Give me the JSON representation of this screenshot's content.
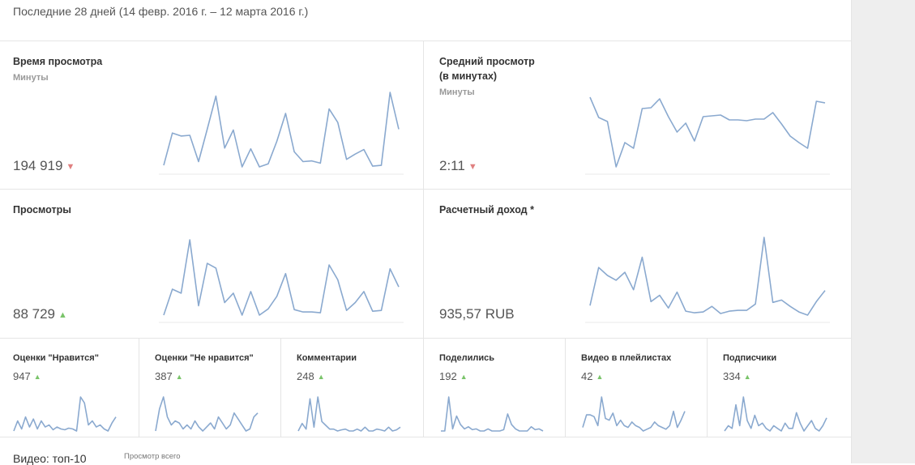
{
  "period": "Последние 28 дней (14 февр. 2016 г. – 12 марта 2016 г.)",
  "big_cards": [
    {
      "title": "Время просмотра",
      "subtitle": "Минуты",
      "value": "194 919",
      "trend": "▼"
    },
    {
      "title": "Средний просмотр\n(в минутах)",
      "subtitle": "Минуты",
      "value": "2:11",
      "trend": "▼"
    },
    {
      "title": "Просмотры",
      "subtitle": "",
      "value": "88 729",
      "trend": "▲"
    },
    {
      "title": "Расчетный доход *",
      "subtitle": "",
      "value": "935,57 RUB",
      "trend": ""
    }
  ],
  "small_cards": [
    {
      "title": "Оценки \"Нравится\"",
      "value": "947",
      "trend": "▲"
    },
    {
      "title": "Оценки \"Не нравится\"",
      "value": "387",
      "trend": "▲"
    },
    {
      "title": "Комментарии",
      "value": "248",
      "trend": "▲"
    },
    {
      "title": "Поделились",
      "value": "192",
      "trend": "▲"
    },
    {
      "title": "Видео в плейлистах",
      "value": "42",
      "trend": "▲"
    },
    {
      "title": "Подписчики",
      "value": "334",
      "trend": "▲"
    }
  ],
  "bottom": {
    "title": "Видео: топ-10",
    "subtitle": "Просмотр всего"
  },
  "colors": {
    "line": "#8aa9cf",
    "up": "#7ac46a",
    "down": "#e08080"
  },
  "chart_data": [
    {
      "type": "line",
      "series": [
        {
          "values": [
            2,
            45,
            41,
            42,
            7,
            50,
            94,
            25,
            49,
            0,
            24,
            0,
            4,
            34,
            71,
            20,
            7,
            8,
            5,
            77,
            59,
            10,
            17,
            23,
            1,
            2,
            99,
            50
          ]
        }
      ]
    },
    {
      "type": "line",
      "series": [
        {
          "values": [
            88,
            63,
            58,
            2,
            32,
            25,
            74,
            75,
            86,
            64,
            45,
            56,
            34,
            64,
            65,
            66,
            60,
            60,
            59,
            61,
            61,
            69,
            55,
            40,
            32,
            25,
            83,
            81
          ]
        }
      ]
    },
    {
      "type": "line",
      "series": [
        {
          "values": [
            3,
            36,
            31,
            99,
            15,
            69,
            63,
            19,
            31,
            3,
            33,
            3,
            11,
            27,
            56,
            10,
            7,
            7,
            6,
            67,
            48,
            9,
            19,
            33,
            8,
            9,
            62,
            39
          ]
        }
      ]
    },
    {
      "type": "line",
      "series": [
        {
          "values": [
            12,
            60,
            50,
            44,
            54,
            32,
            73,
            17,
            25,
            9,
            29,
            5,
            3,
            4,
            11,
            2,
            5,
            6,
            6,
            14,
            98,
            16,
            19,
            11,
            4,
            0,
            17,
            31
          ]
        }
      ]
    },
    {
      "type": "line",
      "series": [
        {
          "values": [
            5,
            30,
            10,
            40,
            15,
            35,
            10,
            30,
            15,
            20,
            8,
            15,
            10,
            8,
            12,
            10,
            5,
            90,
            75,
            20,
            30,
            15,
            20,
            10,
            5,
            25,
            40
          ]
        }
      ]
    },
    {
      "type": "line",
      "series": [
        {
          "values": [
            5,
            60,
            90,
            40,
            20,
            30,
            25,
            10,
            20,
            10,
            30,
            15,
            5,
            15,
            25,
            10,
            40,
            25,
            10,
            20,
            50,
            35,
            20,
            5,
            10,
            40,
            50
          ]
        }
      ]
    },
    {
      "type": "line",
      "series": [
        {
          "values": [
            5,
            25,
            10,
            90,
            15,
            95,
            30,
            20,
            10,
            10,
            5,
            8,
            10,
            5,
            5,
            10,
            5,
            15,
            5,
            5,
            10,
            8,
            5,
            15,
            5,
            8,
            15
          ]
        }
      ]
    },
    {
      "type": "line",
      "series": [
        {
          "values": [
            5,
            5,
            85,
            10,
            40,
            20,
            10,
            15,
            8,
            10,
            5,
            5,
            10,
            5,
            5,
            5,
            8,
            45,
            20,
            10,
            5,
            5,
            5,
            15,
            8,
            10,
            5
          ]
        }
      ]
    },
    {
      "type": "line",
      "series": [
        {
          "values": [
            15,
            50,
            50,
            45,
            20,
            100,
            40,
            35,
            55,
            20,
            35,
            20,
            15,
            30,
            20,
            15,
            5,
            10,
            15,
            30,
            20,
            15,
            10,
            20,
            60,
            15,
            35,
            60
          ]
        }
      ]
    },
    {
      "type": "line",
      "series": [
        {
          "values": [
            10,
            20,
            15,
            60,
            20,
            75,
            30,
            15,
            40,
            20,
            25,
            15,
            10,
            20,
            15,
            10,
            25,
            15,
            15,
            45,
            25,
            10,
            20,
            30,
            15,
            10,
            20,
            35
          ]
        }
      ]
    }
  ]
}
